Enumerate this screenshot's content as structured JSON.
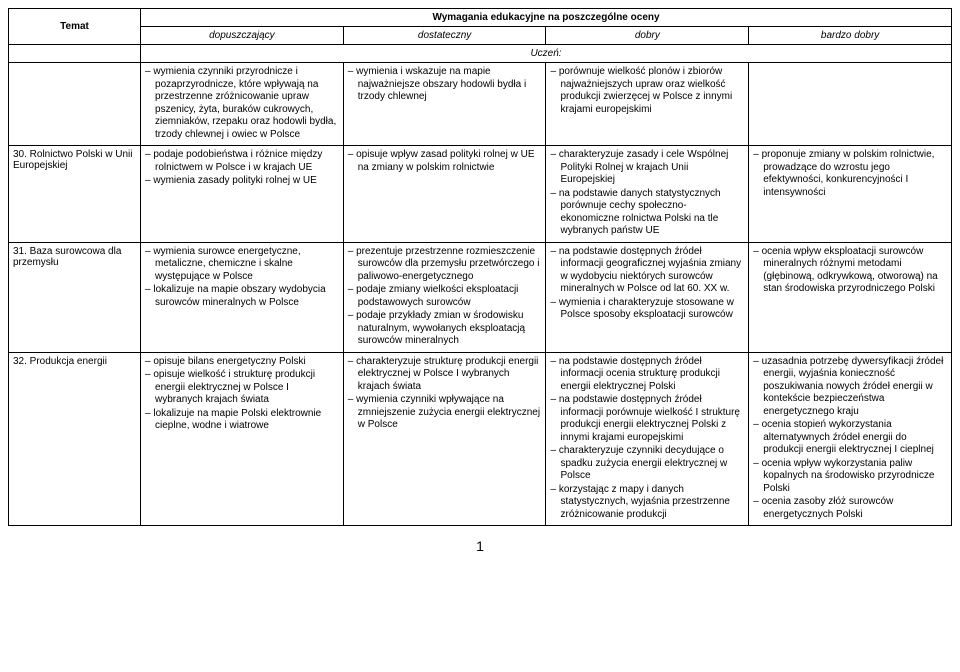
{
  "table": {
    "title": "Wymagania edukacyjne na poszczególne oceny",
    "headers": {
      "topic": "Temat",
      "g1": "dopuszczający",
      "g2": "dostateczny",
      "g3": "dobry",
      "g4": "bardzo dobry"
    },
    "student_label": "Uczeń:",
    "rows": [
      {
        "topic": "",
        "c1": [
          "wymienia czynniki przyrodnicze i pozaprzyrodnicze, które wpływają na przestrzenne zróżnicowanie upraw pszenicy, żyta, buraków cukrowych, ziemniaków, rzepaku oraz hodowli bydła, trzody chlewnej i owiec w Polsce"
        ],
        "c2": [
          "wymienia i wskazuje na mapie najważniejsze obszary hodowli bydła i trzody chlewnej"
        ],
        "c3": [
          "porównuje wielkość plonów i zbiorów najważniejszych upraw oraz wielkość produkcji zwierzęcej w Polsce z innymi krajami europejskimi"
        ],
        "c4": []
      },
      {
        "topic": "30. Rolnictwo Polski w Unii Europejskiej",
        "c1": [
          "podaje podobieństwa i różnice między rolnictwem w Polsce i w krajach UE",
          "wymienia zasady polityki rolnej w UE"
        ],
        "c2": [
          "opisuje wpływ zasad polityki rolnej w UE na zmiany w polskim rolnictwie"
        ],
        "c3": [
          "charakteryzuje zasady i cele Wspólnej Polityki Rolnej w krajach Unii Europejskiej",
          "na podstawie danych statystycznych porównuje cechy społeczno-ekonomiczne rolnictwa Polski na tle wybranych państw UE"
        ],
        "c4": [
          "proponuje zmiany w polskim rolnictwie, prowadzące do wzrostu jego efektywności, konkurencyjności I intensywności"
        ]
      },
      {
        "topic": "31. Baza surowcowa dla przemysłu",
        "c1": [
          "wymienia surowce energetyczne, metaliczne, chemiczne i skalne występujące w Polsce",
          "lokalizuje na mapie obszary wydobycia surowców mineralnych w Polsce"
        ],
        "c2": [
          "prezentuje przestrzenne rozmieszczenie surowców dla przemysłu przetwórczego i paliwowo-energetycznego",
          "podaje zmiany wielkości eksploatacji podstawowych surowców",
          "podaje przykłady zmian w środowisku naturalnym, wywołanych eksploatacją surowców mineralnych"
        ],
        "c3": [
          "na podstawie dostępnych źródeł informacji geograficznej wyjaśnia zmiany w wydobyciu niektórych surowców mineralnych w Polsce od lat 60. XX w.",
          "wymienia i charakteryzuje stosowane w Polsce sposoby eksploatacji surowców"
        ],
        "c4": [
          "ocenia wpływ eksploatacji surowców mineralnych różnymi metodami (głębinową, odkrywkową, otworową) na stan środowiska przyrodniczego Polski"
        ]
      },
      {
        "topic": "32. Produkcja energii",
        "c1": [
          "opisuje bilans energetyczny Polski",
          "opisuje wielkość i strukturę produkcji energii elektrycznej w Polsce I wybranych krajach świata",
          "lokalizuje na mapie Polski elektrownie cieplne, wodne i wiatrowe"
        ],
        "c2": [
          "charakteryzuje strukturę produkcji energii elektrycznej w Polsce I wybranych krajach świata",
          "wymienia czynniki wpływające na zmniejszenie zużycia energii elektrycznej w Polsce"
        ],
        "c3": [
          "na podstawie dostępnych źródeł informacji ocenia strukturę produkcji energii elektrycznej Polski",
          "na podstawie dostępnych źródeł informacji porównuje wielkość I strukturę produkcji energii elektrycznej Polski z innymi krajami europejskimi",
          "charakteryzuje czynniki decydujące o spadku zużycia energii elektrycznej w Polsce",
          "korzystając z mapy i danych statystycznych, wyjaśnia przestrzenne zróżnicowanie produkcji"
        ],
        "c4": [
          "uzasadnia potrzebę dywersyfikacji źródeł energii, wyjaśnia konieczność poszukiwania nowych źródeł energii w kontekście bezpieczeństwa energetycznego kraju",
          "ocenia stopień wykorzystania alternatywnych źródeł energii do produkcji energii elektrycznej I cieplnej",
          "ocenia wpływ wykorzystania paliw kopalnych na środowisko przyrodnicze Polski",
          "ocenia zasoby złóż surowców energetycznych Polski"
        ]
      }
    ]
  },
  "page_number": "1"
}
